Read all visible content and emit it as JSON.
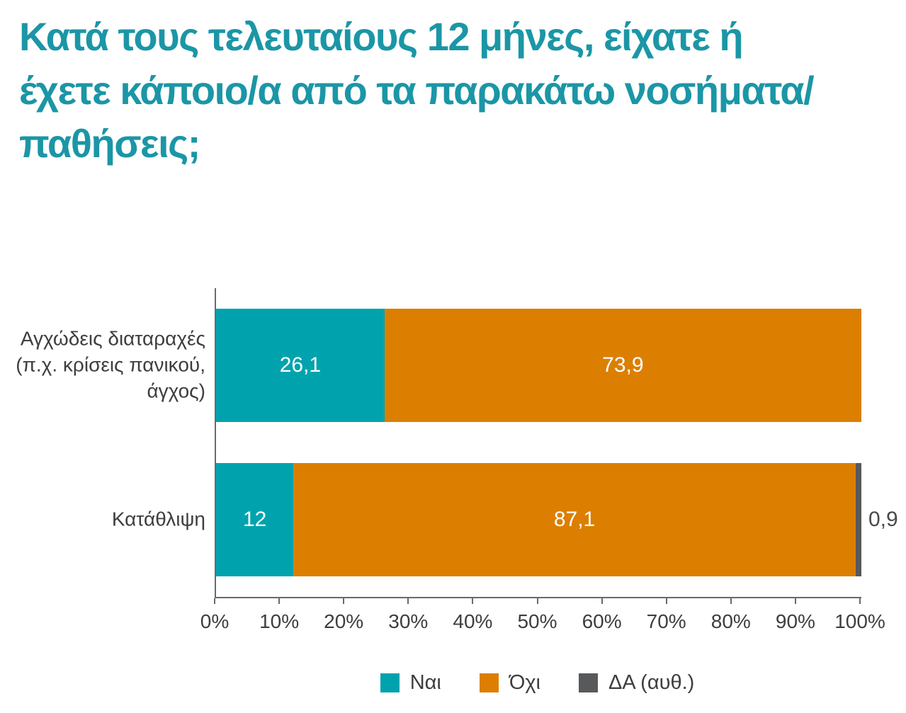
{
  "title": {
    "text": "Κατά τους τελευταίους 12 μήνες, είχατε ή\nέχετε κάποιο/α από τα παρακάτω νοσήματα/\nπαθήσεις;",
    "color": "#1B96A6"
  },
  "chart_data": {
    "type": "bar",
    "subtype": "horizontal-stacked",
    "title": "Κατά τους τελευταίους 12 μήνες, είχατε ή έχετε κάποιο/α από τα παρακάτω νοσήματα/παθήσεις;",
    "categories": [
      "Αγχώδεις διαταραχές\n(π.χ. κρίσεις πανικού,\nάγχος)",
      "Κατάθλιψη"
    ],
    "series": [
      {
        "name": "Ναι",
        "color": "#00A3AD",
        "values": [
          26.1,
          12
        ],
        "labels": [
          "26,1",
          "12"
        ]
      },
      {
        "name": "Όχι",
        "color": "#DC7F00",
        "values": [
          73.9,
          87.1
        ],
        "labels": [
          "73,9",
          "87,1"
        ]
      },
      {
        "name": "ΔΑ (αυθ.)",
        "color": "#58595B",
        "values": [
          0,
          0.9
        ],
        "labels": [
          "",
          "0,9"
        ]
      }
    ],
    "xlim": [
      0,
      100
    ],
    "x_ticks": [
      "0%",
      "10%",
      "20%",
      "30%",
      "40%",
      "50%",
      "60%",
      "70%",
      "80%",
      "90%",
      "100%"
    ],
    "grid": false,
    "legend_position": "bottom",
    "axis_color": "#6a6a6a",
    "value_label_color_inside": "#ffffff",
    "value_label_color_outside": "#4a4a4a",
    "text_color": "#3e3e3e"
  }
}
